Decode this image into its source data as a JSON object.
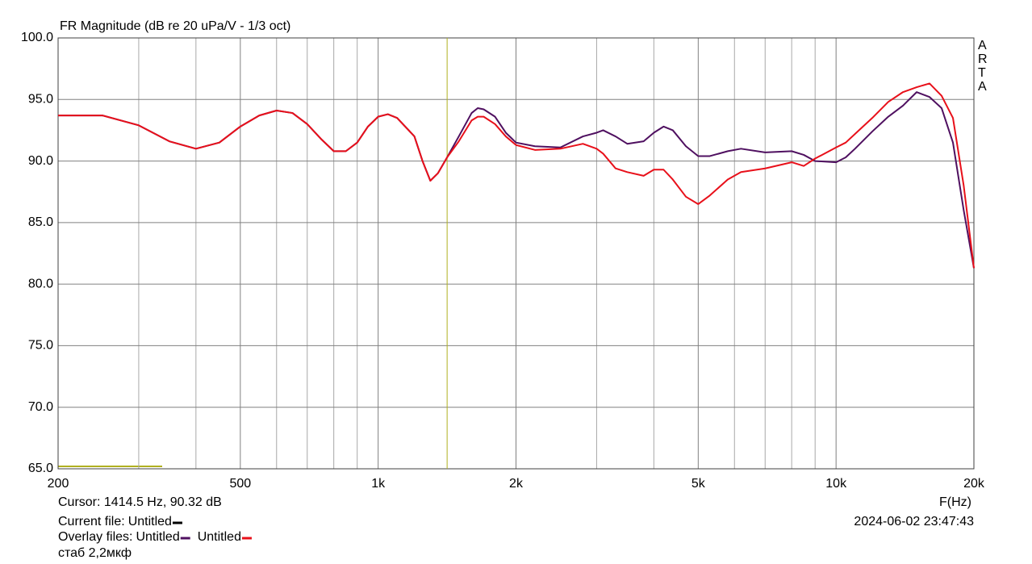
{
  "chart_data": {
    "type": "line",
    "title": "FR Magnitude (dB re 20 uPa/V - 1/3 oct)",
    "watermark": "ARTA",
    "x_label": "F(Hz)",
    "log_x": true,
    "xlim": [
      200,
      20000
    ],
    "xticks": [
      200,
      500,
      {
        "value": 1000,
        "label": "1k"
      },
      {
        "value": 2000,
        "label": "2k"
      },
      {
        "value": 5000,
        "label": "5k"
      },
      {
        "value": 10000,
        "label": "10k"
      },
      {
        "value": 20000,
        "label": "20k"
      }
    ],
    "x_minor_grid": [
      300,
      400,
      600,
      700,
      800,
      900,
      3000,
      4000,
      6000,
      7000,
      8000,
      9000
    ],
    "ylim": [
      65,
      100
    ],
    "yticks": [
      {
        "value": 65,
        "label": "65.0"
      },
      {
        "value": 70,
        "label": "70.0"
      },
      {
        "value": 75,
        "label": "75.0"
      },
      {
        "value": 80,
        "label": "80.0"
      },
      {
        "value": 85,
        "label": "85.0"
      },
      {
        "value": 90,
        "label": "90.0"
      },
      {
        "value": 95,
        "label": "95.0"
      },
      {
        "value": 100,
        "label": "100.0"
      }
    ],
    "grid": true,
    "cursor_x": 1414.5,
    "cursor_color": "#b0b020",
    "cursor_text": "Cursor: 1414.5 Hz, 90.32 dB",
    "current_file_label": "Current file:",
    "current_file": {
      "name": "Untitled",
      "color": "#000000"
    },
    "overlay_label": "Overlay files:",
    "note": "стаб 2,2мкф",
    "timestamp": "2024-06-02  23:47:43",
    "x": [
      200,
      250,
      300,
      350,
      400,
      450,
      500,
      550,
      600,
      650,
      700,
      750,
      800,
      850,
      900,
      950,
      1000,
      1050,
      1100,
      1200,
      1250,
      1300,
      1350,
      1414.5,
      1500,
      1600,
      1650,
      1700,
      1800,
      1900,
      2000,
      2200,
      2500,
      2800,
      3000,
      3100,
      3300,
      3500,
      3800,
      4000,
      4200,
      4400,
      4700,
      5000,
      5300,
      5800,
      6200,
      7000,
      8000,
      8500,
      9000,
      10000,
      10500,
      11000,
      12000,
      13000,
      14000,
      15000,
      16000,
      17000,
      18000,
      19000,
      20000
    ],
    "series": [
      {
        "name": "Untitled",
        "color": "#4f1060",
        "values": [
          93.7,
          93.7,
          92.9,
          91.6,
          91.0,
          91.5,
          92.8,
          93.7,
          94.1,
          93.9,
          93.0,
          91.8,
          90.8,
          90.8,
          91.5,
          92.8,
          93.6,
          93.8,
          93.5,
          92.0,
          90.0,
          88.4,
          89.0,
          90.3,
          92.0,
          93.9,
          94.3,
          94.2,
          93.6,
          92.3,
          91.5,
          91.2,
          91.1,
          92.0,
          92.3,
          92.5,
          92.0,
          91.4,
          91.6,
          92.3,
          92.8,
          92.5,
          91.2,
          90.4,
          90.4,
          90.8,
          91.0,
          90.7,
          90.8,
          90.5,
          90.0,
          89.9,
          90.3,
          91.0,
          92.4,
          93.6,
          94.5,
          95.6,
          95.2,
          94.3,
          91.5,
          86.0,
          81.3
        ]
      },
      {
        "name": "Untitled",
        "color": "#e8101a",
        "values": [
          93.7,
          93.7,
          92.9,
          91.6,
          91.0,
          91.5,
          92.8,
          93.7,
          94.1,
          93.9,
          93.0,
          91.8,
          90.8,
          90.8,
          91.5,
          92.8,
          93.6,
          93.8,
          93.5,
          92.0,
          90.0,
          88.4,
          89.0,
          90.3,
          91.6,
          93.3,
          93.6,
          93.6,
          93.0,
          92.0,
          91.3,
          90.9,
          91.0,
          91.4,
          91.0,
          90.6,
          89.4,
          89.1,
          88.8,
          89.3,
          89.3,
          88.5,
          87.1,
          86.5,
          87.2,
          88.5,
          89.1,
          89.4,
          89.9,
          89.6,
          90.2,
          91.1,
          91.5,
          92.2,
          93.5,
          94.8,
          95.6,
          96.0,
          96.3,
          95.3,
          93.5,
          88.0,
          81.3
        ]
      }
    ]
  }
}
